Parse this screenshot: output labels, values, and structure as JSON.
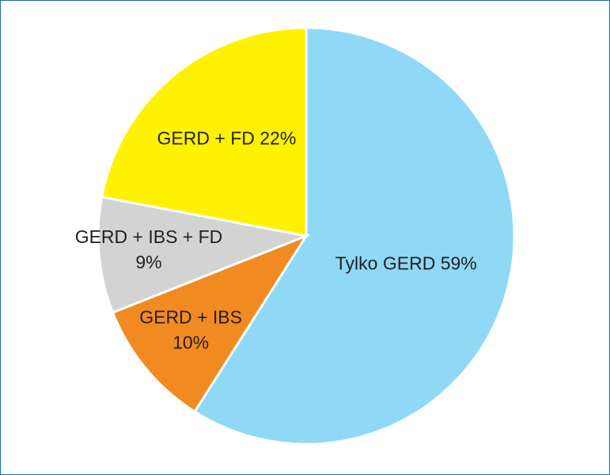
{
  "chart_data": {
    "type": "pie",
    "categories": [
      "Tylko GERD",
      "GERD + IBS",
      "GERD + IBS + FD",
      "GERD + FD"
    ],
    "values": [
      59,
      10,
      9,
      22
    ],
    "value_labels": [
      "59%",
      "10%",
      "9%",
      "22%"
    ],
    "colors": [
      "#8fd9f6",
      "#f28a22",
      "#d3d3d3",
      "#fff200"
    ]
  }
}
